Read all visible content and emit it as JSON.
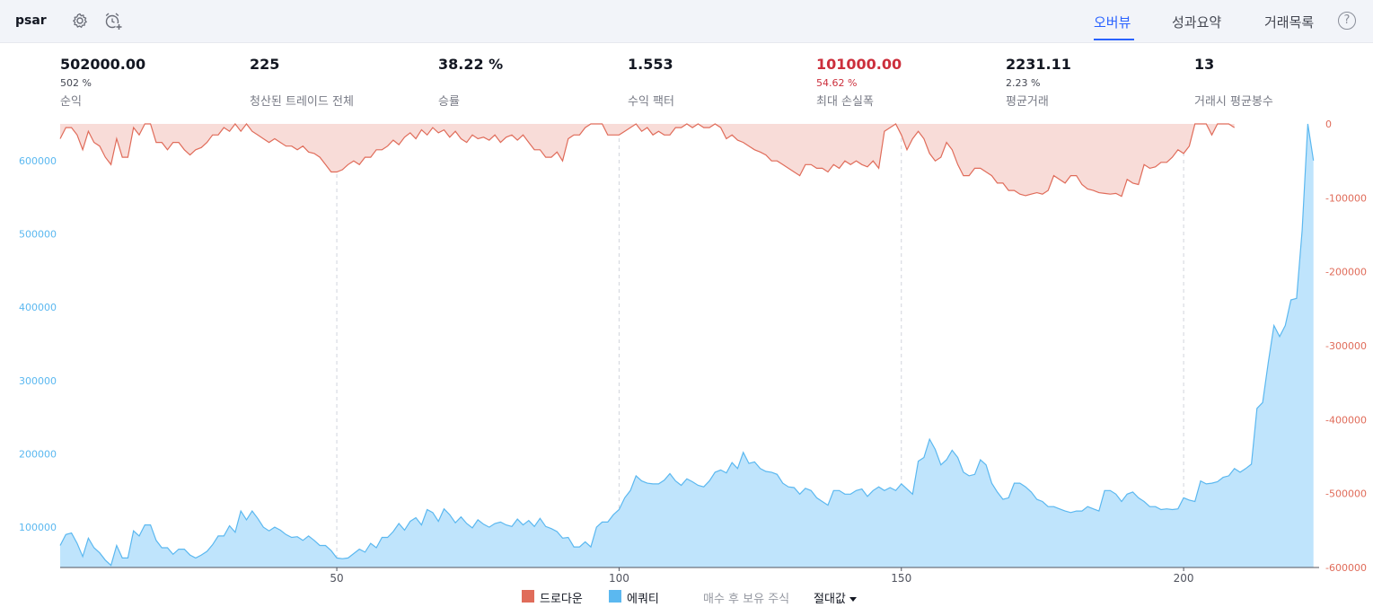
{
  "header": {
    "strategy_name": "psar",
    "icons": [
      "gear-icon",
      "alarm-add-icon",
      "help-icon"
    ],
    "tabs": [
      {
        "label": "오버뷰",
        "active": true
      },
      {
        "label": "성과요약",
        "active": false
      },
      {
        "label": "거래목록",
        "active": false
      }
    ],
    "help_label": "?"
  },
  "stats": [
    {
      "value": "502000.00",
      "pct": "502 %",
      "label": "순익",
      "color": "default"
    },
    {
      "value": "225",
      "pct": "",
      "label": "청산된 트레이드 전체",
      "color": "default"
    },
    {
      "value": "38.22 %",
      "pct": "",
      "label": "승률",
      "color": "default"
    },
    {
      "value": "1.553",
      "pct": "",
      "label": "수익 팩터",
      "color": "default"
    },
    {
      "value": "101000.00",
      "pct": "54.62 %",
      "label": "최대 손실폭",
      "color": "red"
    },
    {
      "value": "2231.11",
      "pct": "2.23 %",
      "label": "평균거래",
      "color": "default"
    },
    {
      "value": "13",
      "pct": "",
      "label": "거래시 평균봉수",
      "color": "default"
    }
  ],
  "legend": {
    "drawdown_label": "드로다운",
    "equity_label": "에쿼티",
    "buy_hold_label": "매수 후 보유 주식",
    "abs_label": "절대값"
  },
  "colors": {
    "equity_line": "#5bb8f0",
    "equity_fill": "#bfe4fc",
    "drawdown_line": "#e06c5a",
    "drawdown_fill": "#f8dcd8",
    "left_axis": "#5bb8f0",
    "right_axis": "#e06c5a",
    "accent": "#2962ff"
  },
  "chart_data": {
    "type": "area",
    "x_ticks": [
      50,
      100,
      150,
      200
    ],
    "xlim": [
      1,
      224
    ],
    "left_axis": {
      "ticks": [
        100000,
        200000,
        300000,
        400000,
        500000,
        600000
      ],
      "ylim": [
        45000,
        650000
      ]
    },
    "right_axis": {
      "ticks": [
        0,
        -100000,
        -200000,
        -300000,
        -400000,
        -500000,
        -600000
      ],
      "ylim": [
        -600000,
        0
      ]
    },
    "series": [
      {
        "name": "에쿼티",
        "axis": "left",
        "values": [
          75000,
          90000,
          92000,
          78000,
          60000,
          85000,
          72000,
          65000,
          55000,
          48000,
          75000,
          58000,
          58000,
          95000,
          88000,
          103000,
          103000,
          82000,
          72000,
          72000,
          63000,
          70000,
          70000,
          62000,
          58000,
          62000,
          67000,
          76000,
          88000,
          88000,
          102000,
          93000,
          122000,
          110000,
          122000,
          112000,
          100000,
          95000,
          100000,
          96000,
          90000,
          86000,
          87000,
          82000,
          88000,
          82000,
          75000,
          75000,
          68000,
          58000,
          57000,
          58000,
          64000,
          70000,
          66000,
          78000,
          72000,
          86000,
          86000,
          94000,
          105000,
          96000,
          108000,
          113000,
          103000,
          124000,
          120000,
          108000,
          125000,
          117000,
          106000,
          114000,
          105000,
          99000,
          110000,
          104000,
          100000,
          105000,
          107000,
          103000,
          101000,
          111000,
          103000,
          109000,
          101000,
          112000,
          101000,
          98000,
          94000,
          85000,
          86000,
          73000,
          73000,
          80000,
          73000,
          100000,
          107000,
          107000,
          117000,
          124000,
          140000,
          150000,
          170000,
          163000,
          160000,
          159000,
          159000,
          164000,
          173000,
          163000,
          157000,
          166000,
          162000,
          157000,
          155000,
          163000,
          175000,
          178000,
          174000,
          188000,
          180000,
          202000,
          187000,
          189000,
          180000,
          176000,
          175000,
          172000,
          160000,
          155000,
          154000,
          145000,
          153000,
          150000,
          140000,
          135000,
          130000,
          150000,
          150000,
          145000,
          145000,
          150000,
          152000,
          142000,
          150000,
          155000,
          150000,
          154000,
          150000,
          159000,
          152000,
          145000,
          190000,
          195000,
          220000,
          206000,
          185000,
          192000,
          205000,
          195000,
          175000,
          170000,
          172000,
          192000,
          185000,
          160000,
          148000,
          138000,
          140000,
          160000,
          160000,
          155000,
          148000,
          138000,
          135000,
          128000,
          128000,
          125000,
          122000,
          120000,
          122000,
          122000,
          128000,
          125000,
          122000,
          150000,
          150000,
          145000,
          135000,
          145000,
          148000,
          140000,
          135000,
          128000,
          128000,
          124000,
          125000,
          124000,
          125000,
          140000,
          137000,
          135000,
          163000,
          159000,
          160000,
          162000,
          168000,
          170000,
          180000,
          175000,
          180000,
          186000,
          262000,
          270000,
          325000,
          375000,
          360000,
          375000,
          410000,
          412000,
          505000,
          650000,
          600000
        ]
      },
      {
        "name": "드로다운",
        "axis": "right",
        "values": [
          -20000,
          -5000,
          -5000,
          -15000,
          -35000,
          -10000,
          -25000,
          -30000,
          -45000,
          -55000,
          -20000,
          -45000,
          -45000,
          -5000,
          -15000,
          0,
          0,
          -25000,
          -25000,
          -35000,
          -25000,
          -25000,
          -35000,
          -42000,
          -35000,
          -32000,
          -25000,
          -15000,
          -15000,
          -5000,
          -10000,
          0,
          -10000,
          0,
          -10000,
          -15000,
          -20000,
          -25000,
          -20000,
          -25000,
          -30000,
          -30000,
          -35000,
          -30000,
          -38000,
          -40000,
          -45000,
          -55000,
          -65000,
          -65000,
          -62000,
          -55000,
          -50000,
          -55000,
          -45000,
          -45000,
          -35000,
          -35000,
          -30000,
          -22000,
          -28000,
          -18000,
          -12000,
          -20000,
          -8000,
          -15000,
          -5000,
          -12000,
          -8000,
          -18000,
          -10000,
          -20000,
          -25000,
          -15000,
          -20000,
          -18000,
          -22000,
          -15000,
          -25000,
          -18000,
          -15000,
          -22000,
          -15000,
          -25000,
          -35000,
          -35000,
          -45000,
          -45000,
          -38000,
          -50000,
          -20000,
          -15000,
          -15000,
          -5000,
          0,
          0,
          0,
          -15000,
          -15000,
          -15000,
          -10000,
          -5000,
          0,
          -10000,
          -5000,
          -15000,
          -10000,
          -15000,
          -15000,
          -5000,
          -5000,
          0,
          -5000,
          0,
          -5000,
          -5000,
          0,
          -5000,
          -20000,
          -15000,
          -22000,
          -25000,
          -30000,
          -35000,
          -38000,
          -42000,
          -50000,
          -50000,
          -55000,
          -60000,
          -65000,
          -70000,
          -55000,
          -55000,
          -60000,
          -60000,
          -65000,
          -55000,
          -60000,
          -50000,
          -55000,
          -50000,
          -55000,
          -58000,
          -50000,
          -60000,
          -10000,
          -5000,
          0,
          -15000,
          -35000,
          -20000,
          -10000,
          -20000,
          -40000,
          -50000,
          -45000,
          -25000,
          -35000,
          -55000,
          -70000,
          -70000,
          -60000,
          -60000,
          -65000,
          -70000,
          -80000,
          -80000,
          -90000,
          -90000,
          -95000,
          -97000,
          -95000,
          -93000,
          -95000,
          -90000,
          -70000,
          -75000,
          -80000,
          -70000,
          -70000,
          -82000,
          -88000,
          -90000,
          -93000,
          -94000,
          -95000,
          -94000,
          -98000,
          -75000,
          -80000,
          -82000,
          -55000,
          -60000,
          -58000,
          -52000,
          -52000,
          -45000,
          -35000,
          -40000,
          -30000,
          0,
          0,
          0,
          -15000,
          0,
          0,
          0,
          -5000
        ]
      }
    ]
  }
}
